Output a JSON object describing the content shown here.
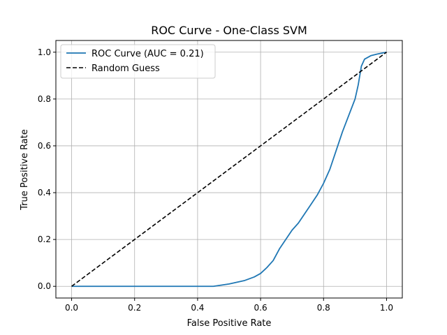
{
  "chart_data": {
    "type": "line",
    "title": "ROC Curve - One-Class SVM",
    "xlabel": "False Positive Rate",
    "ylabel": "True Positive Rate",
    "xlim": [
      -0.05,
      1.05
    ],
    "ylim": [
      -0.05,
      1.05
    ],
    "xticks": [
      "0.0",
      "0.2",
      "0.4",
      "0.6",
      "0.8",
      "1.0"
    ],
    "yticks": [
      "0.0",
      "0.2",
      "0.4",
      "0.6",
      "0.8",
      "1.0"
    ],
    "grid": true,
    "legend_position": "top-left",
    "series": [
      {
        "name": "ROC Curve (AUC = 0.21)",
        "color": "#1f77b4",
        "style": "solid",
        "x": [
          0.0,
          0.1,
          0.2,
          0.3,
          0.4,
          0.45,
          0.5,
          0.55,
          0.58,
          0.6,
          0.62,
          0.64,
          0.66,
          0.68,
          0.7,
          0.72,
          0.74,
          0.76,
          0.78,
          0.8,
          0.82,
          0.84,
          0.86,
          0.88,
          0.9,
          0.91,
          0.92,
          0.93,
          0.95,
          0.97,
          1.0
        ],
        "y": [
          0.0,
          0.0,
          0.0,
          0.0,
          0.0,
          0.0,
          0.01,
          0.025,
          0.04,
          0.055,
          0.08,
          0.11,
          0.16,
          0.2,
          0.24,
          0.27,
          0.31,
          0.35,
          0.39,
          0.44,
          0.5,
          0.58,
          0.66,
          0.73,
          0.8,
          0.86,
          0.94,
          0.97,
          0.985,
          0.992,
          1.0
        ]
      },
      {
        "name": "Random Guess",
        "color": "#000000",
        "style": "dashed",
        "x": [
          0.0,
          1.0
        ],
        "y": [
          0.0,
          1.0
        ]
      }
    ]
  }
}
